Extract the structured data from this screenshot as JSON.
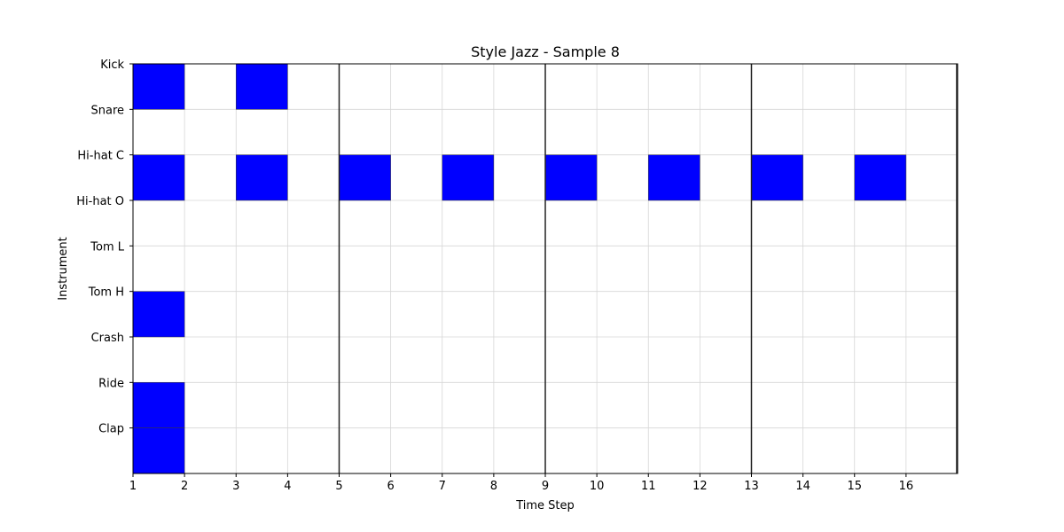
{
  "chart_data": {
    "type": "heatmap",
    "title": "Style Jazz - Sample 8",
    "xlabel": "Time Step",
    "ylabel": "Instrument",
    "instruments": [
      "Kick",
      "Snare",
      "Hi-hat C",
      "Hi-hat O",
      "Tom L",
      "Tom H",
      "Crash",
      "Ride",
      "Clap"
    ],
    "x_ticks": [
      1,
      2,
      3,
      4,
      5,
      6,
      7,
      8,
      9,
      10,
      11,
      12,
      13,
      14,
      15,
      16
    ],
    "xlim": [
      1,
      17
    ],
    "bar_lines": [
      5,
      9,
      13
    ],
    "grid": true,
    "active_color": "#0000ff",
    "hits": [
      {
        "instrument": "Kick",
        "step": 1
      },
      {
        "instrument": "Kick",
        "step": 3
      },
      {
        "instrument": "Hi-hat C",
        "step": 1
      },
      {
        "instrument": "Hi-hat C",
        "step": 3
      },
      {
        "instrument": "Hi-hat C",
        "step": 5
      },
      {
        "instrument": "Hi-hat C",
        "step": 7
      },
      {
        "instrument": "Hi-hat C",
        "step": 9
      },
      {
        "instrument": "Hi-hat C",
        "step": 11
      },
      {
        "instrument": "Hi-hat C",
        "step": 13
      },
      {
        "instrument": "Hi-hat C",
        "step": 15
      },
      {
        "instrument": "Tom H",
        "step": 1
      },
      {
        "instrument": "Ride",
        "step": 1
      },
      {
        "instrument": "Clap",
        "step": 1
      }
    ]
  }
}
